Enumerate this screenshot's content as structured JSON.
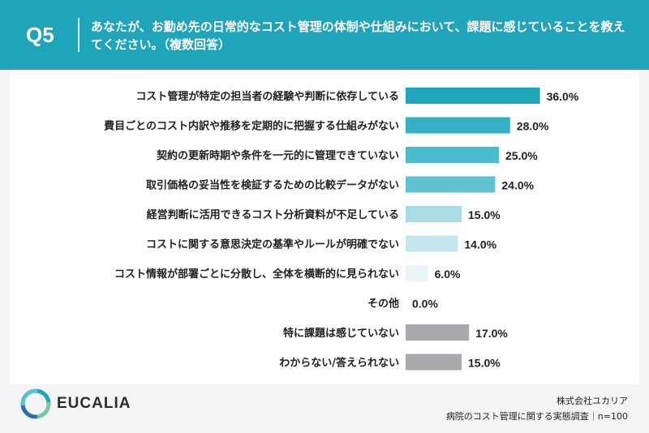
{
  "header": {
    "q_label": "Q5",
    "question": "あなたが、お勤め先の日常的なコスト管理の体制や仕組みにおいて、課題に感じていることを教えてください。（複数回答）"
  },
  "chart_data": {
    "type": "bar",
    "orientation": "horizontal",
    "categories": [
      "コスト管理が特定の担当者の経験や判断に依存している",
      "費目ごとのコスト内訳や推移を定期的に把握する仕組みがない",
      "契約の更新時期や条件を一元的に管理できていない",
      "取引価格の妥当性を検証するための比較データがない",
      "経営判断に活用できるコスト分析資料が不足している",
      "コストに関する意思決定の基準やルールが明確でない",
      "コスト情報が部署ごとに分散し、全体を横断的に見られない",
      "その他",
      "特に課題は感じていない",
      "わからない/答えられない"
    ],
    "values": [
      36.0,
      28.0,
      25.0,
      24.0,
      15.0,
      14.0,
      6.0,
      0.0,
      17.0,
      15.0
    ],
    "value_labels": [
      "36.0%",
      "28.0%",
      "25.0%",
      "24.0%",
      "15.0%",
      "14.0%",
      "6.0%",
      "0.0%",
      "17.0%",
      "15.0%"
    ],
    "bar_colors": [
      "#1fa4ba",
      "#34b1c4",
      "#4bbccd",
      "#5fc3d3",
      "#a9dde6",
      "#c4e7ee",
      "#e9f5f7",
      "#e9f5f7",
      "#a8a8ad",
      "#a8a8ad"
    ],
    "grid": false,
    "legend": "none"
  },
  "footer": {
    "brand": "EUCALIA",
    "company": "株式会社ユカリア",
    "survey": "病院のコスト管理に関する実態調査｜n=100"
  },
  "colors": {
    "header_bg": "#1fa4ba",
    "page_bg": "#f4f4f4",
    "panel_bg": "#ffffff"
  }
}
